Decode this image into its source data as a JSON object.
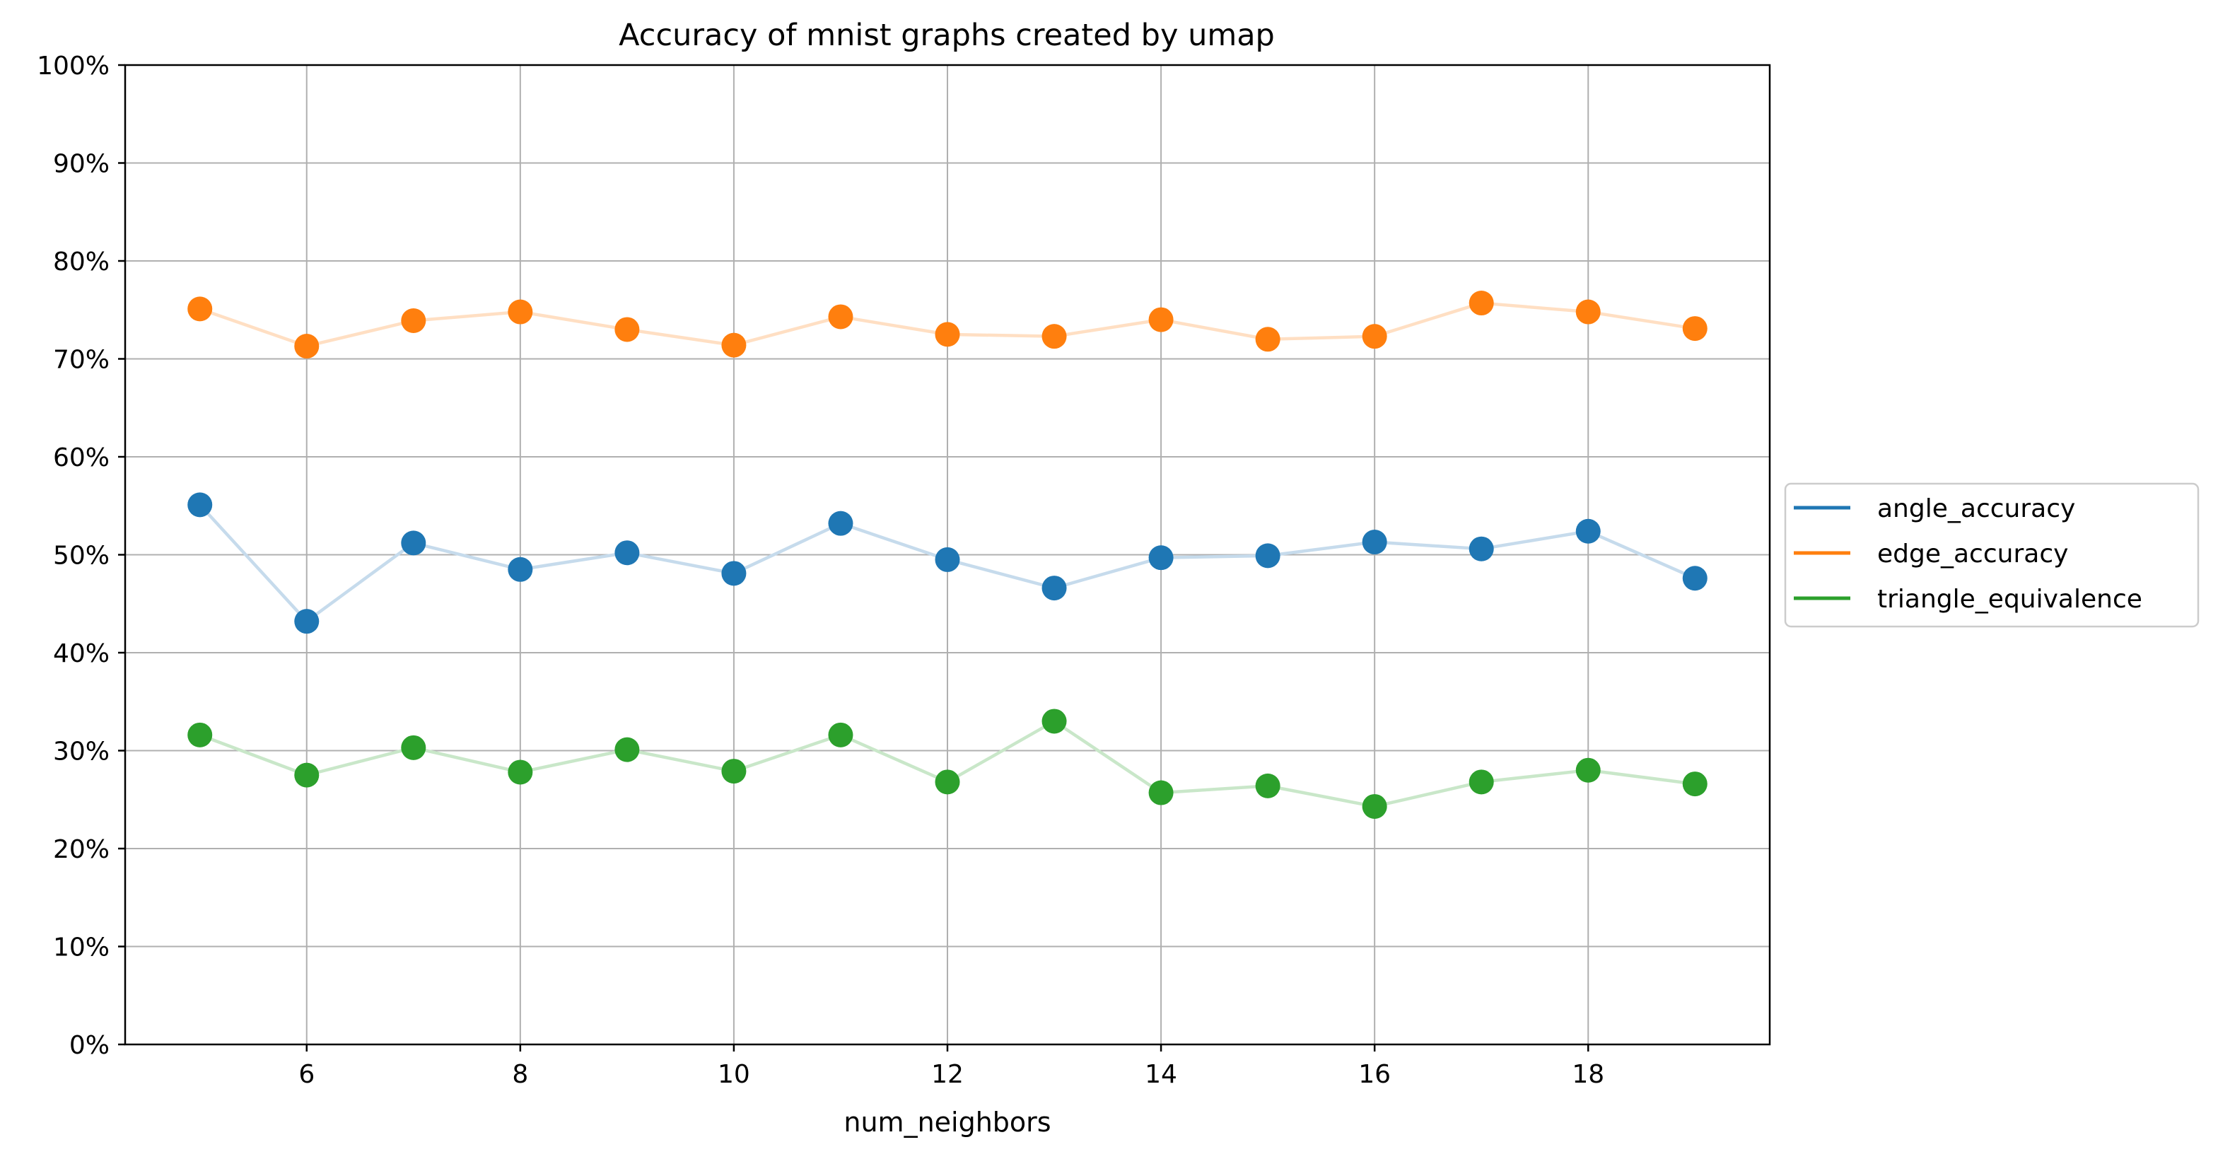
{
  "chart_data": {
    "type": "line",
    "title": "Accuracy of mnist graphs created by umap",
    "xlabel": "num_neighbors",
    "ylabel": "",
    "x": [
      5,
      6,
      7,
      8,
      9,
      10,
      11,
      12,
      13,
      14,
      15,
      16,
      17,
      18,
      19
    ],
    "xlim": [
      4.3,
      19.7
    ],
    "ylim": [
      0,
      1
    ],
    "xticks": [
      6,
      8,
      10,
      12,
      14,
      16,
      18
    ],
    "xtick_labels": [
      "6",
      "8",
      "10",
      "12",
      "14",
      "16",
      "18"
    ],
    "yticks": [
      0,
      0.1,
      0.2,
      0.3,
      0.4,
      0.5,
      0.6,
      0.7,
      0.8,
      0.9,
      1.0
    ],
    "ytick_labels": [
      "0%",
      "10%",
      "20%",
      "30%",
      "40%",
      "50%",
      "60%",
      "70%",
      "80%",
      "90%",
      "100%"
    ],
    "grid": true,
    "legend_position": "right-outside",
    "series": [
      {
        "name": "angle_accuracy",
        "color": "#1f77b4",
        "line_color": "#c6dbec",
        "values": [
          0.551,
          0.432,
          0.512,
          0.485,
          0.502,
          0.481,
          0.532,
          0.495,
          0.466,
          0.497,
          0.499,
          0.513,
          0.506,
          0.524,
          0.476
        ]
      },
      {
        "name": "edge_accuracy",
        "color": "#ff7f0e",
        "line_color": "#ffdfc3",
        "values": [
          0.751,
          0.713,
          0.739,
          0.748,
          0.73,
          0.714,
          0.743,
          0.725,
          0.723,
          0.74,
          0.72,
          0.723,
          0.757,
          0.748,
          0.731
        ]
      },
      {
        "name": "triangle_equivalence",
        "color": "#2ca02c",
        "line_color": "#c9e7c9",
        "values": [
          0.316,
          0.275,
          0.303,
          0.278,
          0.301,
          0.279,
          0.316,
          0.268,
          0.33,
          0.257,
          0.264,
          0.243,
          0.268,
          0.28,
          0.266
        ]
      }
    ]
  }
}
